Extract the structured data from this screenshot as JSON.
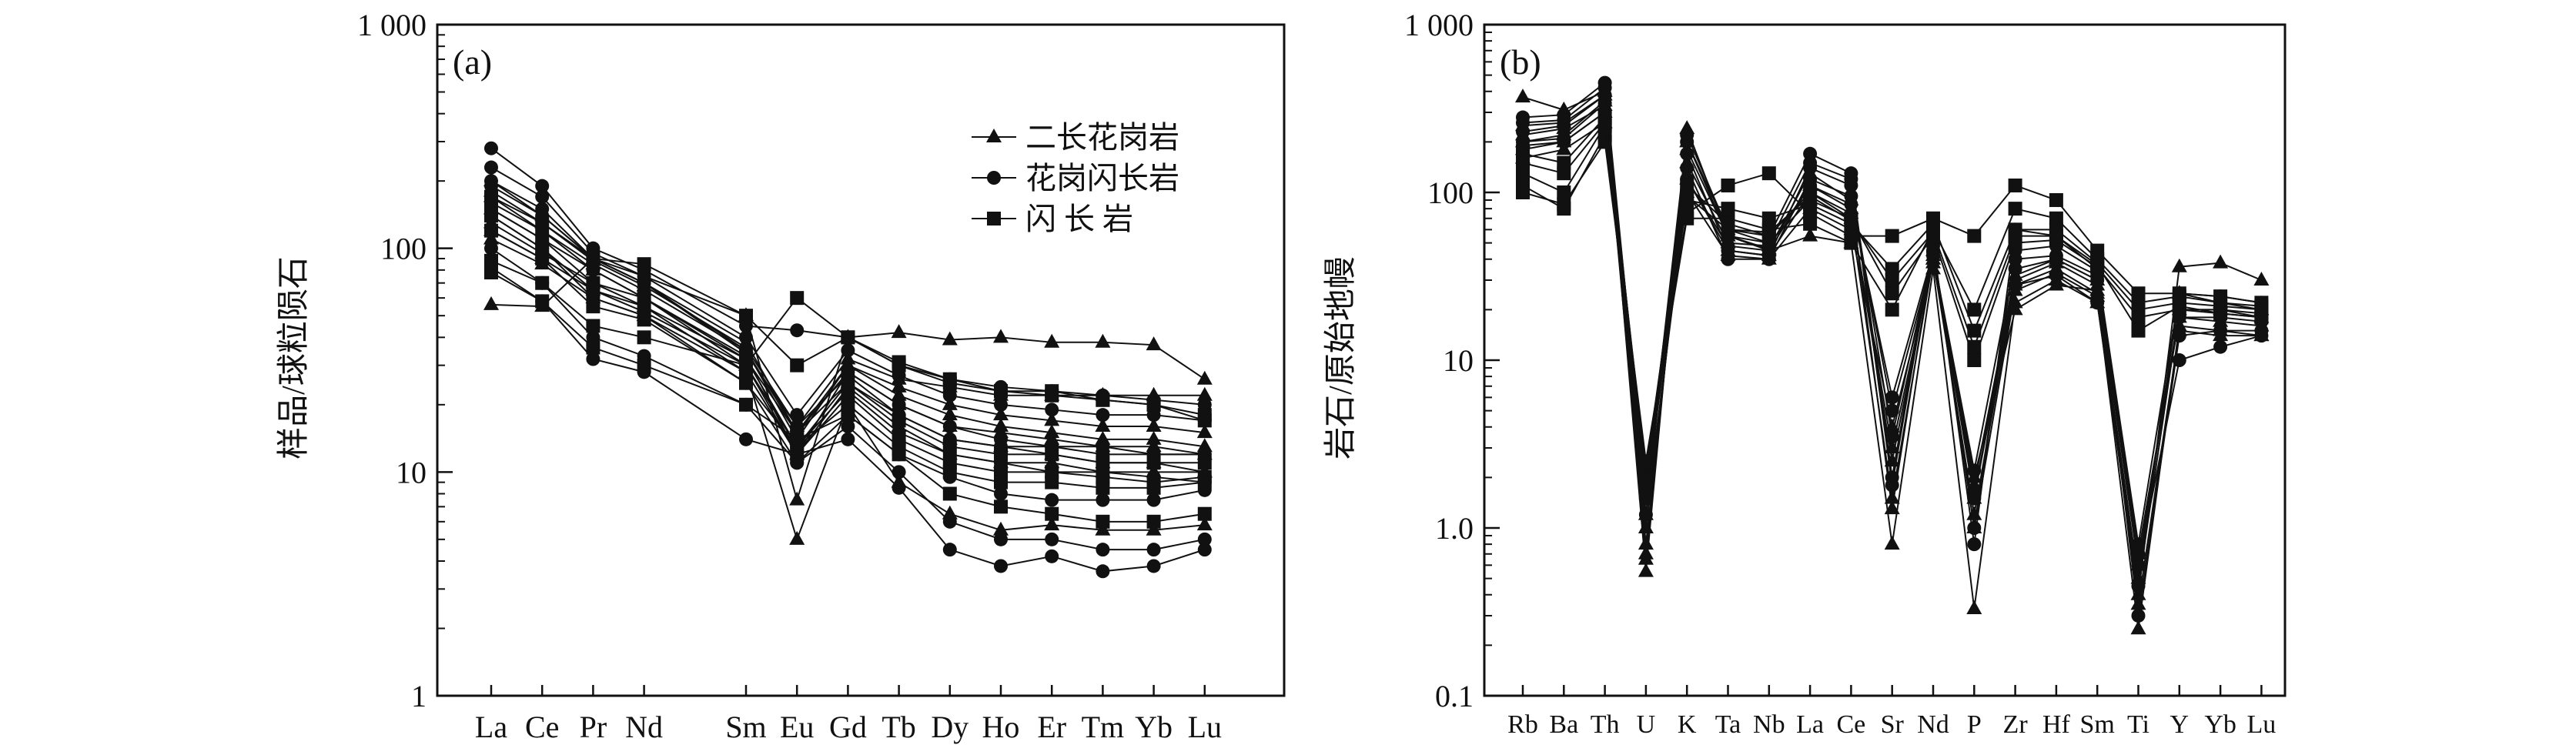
{
  "chart_data": [
    {
      "type": "line",
      "panel_label": "(a)",
      "ylabel": "样品/球粒陨石",
      "yscale": "log",
      "ylim": [
        1,
        1000
      ],
      "yticks": [
        {
          "value": 1,
          "label": "1"
        },
        {
          "value": 10,
          "label": "10"
        },
        {
          "value": 100,
          "label": "100"
        },
        {
          "value": 1000,
          "label": "1 000"
        }
      ],
      "categories": [
        "La",
        "Ce",
        "Pr",
        "Nd",
        "Sm",
        "Eu",
        "Gd",
        "Tb",
        "Dy",
        "Ho",
        "Er",
        "Tm",
        "Yb",
        "Lu"
      ],
      "category_positions": [
        0,
        1,
        2,
        3,
        5,
        6,
        7,
        8,
        9,
        10,
        11,
        12,
        13,
        14
      ],
      "legend": {
        "position": "top-right",
        "entries": [
          {
            "label": "二长花岗岩",
            "marker": "triangle"
          },
          {
            "label": "花岗闪长岩",
            "marker": "circle"
          },
          {
            "label": "闪 长 岩",
            "marker": "square"
          }
        ]
      },
      "series": [
        {
          "marker": "triangle",
          "values": [
            56,
            55,
            90,
            75,
            50,
            7.5,
            40,
            42,
            39,
            40,
            38,
            38,
            37,
            26
          ]
        },
        {
          "marker": "triangle",
          "values": [
            130,
            95,
            70,
            55,
            32,
            13,
            25,
            18,
            14,
            13,
            12,
            11,
            11,
            10
          ]
        },
        {
          "marker": "triangle",
          "values": [
            150,
            110,
            80,
            60,
            33,
            12,
            28,
            20,
            16,
            15,
            14,
            13,
            13,
            12
          ]
        },
        {
          "marker": "triangle",
          "values": [
            170,
            120,
            85,
            65,
            35,
            14,
            30,
            22,
            18,
            16,
            15,
            14,
            14,
            13
          ]
        },
        {
          "marker": "triangle",
          "values": [
            110,
            85,
            60,
            50,
            28,
            5,
            20,
            9,
            6.5,
            5.5,
            5.8,
            5.5,
            5.5,
            5.8
          ]
        },
        {
          "marker": "triangle",
          "values": [
            200,
            140,
            90,
            70,
            38,
            15,
            30,
            24,
            20,
            18,
            17,
            16,
            16,
            15
          ]
        },
        {
          "marker": "triangle",
          "values": [
            120,
            90,
            65,
            52,
            30,
            12,
            24,
            16,
            12,
            11,
            11,
            10,
            10,
            10
          ]
        },
        {
          "marker": "triangle",
          "values": [
            180,
            130,
            88,
            68,
            36,
            16,
            32,
            26,
            24,
            22,
            22,
            22,
            22,
            22
          ]
        },
        {
          "marker": "circle",
          "values": [
            280,
            190,
            100,
            80,
            45,
            43,
            40,
            30,
            26,
            24,
            23,
            22,
            21,
            20
          ]
        },
        {
          "marker": "circle",
          "values": [
            230,
            170,
            95,
            75,
            40,
            18,
            35,
            27,
            22,
            20,
            19,
            18,
            18,
            17
          ]
        },
        {
          "marker": "circle",
          "values": [
            82,
            58,
            32,
            28,
            14,
            12,
            14,
            8.5,
            4.5,
            3.8,
            4.2,
            3.6,
            3.8,
            4.5
          ]
        },
        {
          "marker": "circle",
          "values": [
            200,
            150,
            90,
            70,
            35,
            15,
            28,
            20,
            16,
            14,
            13,
            12,
            12,
            12
          ]
        },
        {
          "marker": "circle",
          "values": [
            100,
            70,
            40,
            33,
            20,
            11,
            16,
            10,
            6,
            5,
            5,
            4.5,
            4.5,
            5
          ]
        },
        {
          "marker": "circle",
          "values": [
            160,
            120,
            80,
            60,
            30,
            13,
            23,
            15,
            12,
            11,
            10,
            10,
            9.5,
            9
          ]
        },
        {
          "marker": "circle",
          "values": [
            140,
            100,
            60,
            50,
            25,
            11,
            18,
            12,
            9.5,
            8,
            7.5,
            7.5,
            7.5,
            8.3
          ]
        },
        {
          "marker": "circle",
          "values": [
            190,
            140,
            90,
            70,
            34,
            16,
            27,
            18,
            14,
            13,
            13,
            13,
            12,
            12
          ]
        },
        {
          "marker": "square",
          "values": [
            88,
            70,
            45,
            40,
            30,
            60,
            40,
            30,
            25,
            23,
            22,
            21,
            20,
            18
          ]
        },
        {
          "marker": "square",
          "values": [
            78,
            58,
            36,
            30,
            20,
            14,
            18,
            12,
            8,
            7,
            6.5,
            6,
            6,
            6.5
          ]
        },
        {
          "marker": "square",
          "values": [
            170,
            130,
            90,
            85,
            50,
            30,
            40,
            31,
            26,
            23,
            23,
            21,
            20,
            17
          ]
        },
        {
          "marker": "square",
          "values": [
            140,
            100,
            65,
            55,
            28,
            12,
            22,
            14,
            11,
            10,
            10,
            9.5,
            9,
            9.5
          ]
        },
        {
          "marker": "square",
          "values": [
            150,
            110,
            70,
            60,
            32,
            15,
            25,
            17,
            13,
            12,
            12,
            11,
            11,
            11
          ]
        },
        {
          "marker": "square",
          "values": [
            120,
            90,
            55,
            48,
            25,
            13,
            20,
            13,
            10,
            9,
            9,
            8.5,
            8.5,
            9
          ]
        }
      ]
    },
    {
      "type": "line",
      "panel_label": "(b)",
      "ylabel": "岩石/原始地幔",
      "yscale": "log",
      "ylim": [
        0.1,
        1000
      ],
      "yticks": [
        {
          "value": 0.1,
          "label": "0.1"
        },
        {
          "value": 1,
          "label": "1.0"
        },
        {
          "value": 10,
          "label": "10"
        },
        {
          "value": 100,
          "label": "100"
        },
        {
          "value": 1000,
          "label": "1 000"
        }
      ],
      "categories": [
        "Rb",
        "Ba",
        "Th",
        "U",
        "K",
        "Ta",
        "Nb",
        "La",
        "Ce",
        "Sr",
        "Nd",
        "P",
        "Zr",
        "Hf",
        "Sm",
        "Ti",
        "Y",
        "Yb",
        "Lu"
      ],
      "category_positions": [
        0,
        1,
        2,
        3,
        4,
        5,
        6,
        7,
        8,
        9,
        10,
        11,
        12,
        13,
        14,
        15,
        16,
        17,
        18
      ],
      "series": [
        {
          "marker": "triangle",
          "values": [
            370,
            310,
            400,
            0.55,
            240,
            55,
            45,
            55,
            50,
            0.8,
            35,
            0.33,
            22,
            30,
            22,
            0.4,
            36,
            38,
            30
          ]
        },
        {
          "marker": "triangle",
          "values": [
            250,
            260,
            380,
            0.65,
            200,
            60,
            50,
            90,
            70,
            1.5,
            40,
            1.2,
            28,
            35,
            25,
            0.5,
            25,
            22,
            20
          ]
        },
        {
          "marker": "triangle",
          "values": [
            200,
            220,
            350,
            0.8,
            150,
            50,
            48,
            110,
            80,
            2.5,
            42,
            1.5,
            30,
            38,
            28,
            0.6,
            20,
            20,
            18
          ]
        },
        {
          "marker": "triangle",
          "values": [
            180,
            200,
            300,
            1.0,
            120,
            45,
            42,
            100,
            75,
            3,
            40,
            1.8,
            32,
            40,
            30,
            0.7,
            18,
            17,
            16
          ]
        },
        {
          "marker": "triangle",
          "values": [
            220,
            240,
            330,
            0.7,
            180,
            55,
            46,
            130,
            90,
            1.3,
            45,
            1.0,
            26,
            33,
            24,
            0.25,
            16,
            15,
            14
          ]
        },
        {
          "marker": "triangle",
          "values": [
            160,
            180,
            260,
            1.2,
            100,
            42,
            40,
            80,
            60,
            4,
            38,
            2.0,
            20,
            28,
            26,
            0.35,
            15,
            14,
            14
          ]
        },
        {
          "marker": "circle",
          "values": [
            280,
            290,
            450,
            1.5,
            220,
            60,
            55,
            170,
            130,
            2.0,
            50,
            0.8,
            60,
            55,
            35,
            0.8,
            25,
            24,
            22
          ]
        },
        {
          "marker": "circle",
          "values": [
            230,
            250,
            380,
            1.8,
            170,
            45,
            42,
            140,
            110,
            3.5,
            45,
            1.5,
            35,
            40,
            30,
            0.6,
            10,
            12,
            14
          ]
        },
        {
          "marker": "circle",
          "values": [
            200,
            210,
            340,
            2.0,
            140,
            40,
            40,
            120,
            95,
            5,
            42,
            2.2,
            40,
            42,
            32,
            0.7,
            18,
            18,
            17
          ]
        },
        {
          "marker": "circle",
          "values": [
            260,
            270,
            420,
            1.2,
            200,
            55,
            50,
            150,
            120,
            1.8,
            48,
            1.0,
            45,
            48,
            34,
            0.3,
            14,
            15,
            15
          ]
        },
        {
          "marker": "circle",
          "values": [
            190,
            200,
            300,
            2.2,
            120,
            48,
            45,
            110,
            85,
            6,
            44,
            1.6,
            28,
            32,
            22,
            0.45,
            20,
            19,
            18
          ]
        },
        {
          "marker": "square",
          "values": [
            110,
            80,
            220,
            2.5,
            75,
            110,
            130,
            75,
            55,
            55,
            70,
            55,
            110,
            90,
            45,
            25,
            25,
            24,
            22
          ]
        },
        {
          "marker": "square",
          "values": [
            100,
            85,
            200,
            2.3,
            70,
            70,
            60,
            65,
            50,
            20,
            60,
            20,
            80,
            70,
            40,
            22,
            24,
            22,
            21
          ]
        },
        {
          "marker": "square",
          "values": [
            130,
            100,
            250,
            2.0,
            90,
            80,
            70,
            85,
            65,
            35,
            65,
            15,
            60,
            60,
            38,
            20,
            22,
            21,
            20
          ]
        },
        {
          "marker": "square",
          "values": [
            170,
            150,
            280,
            1.8,
            110,
            65,
            55,
            100,
            70,
            25,
            55,
            10,
            50,
            52,
            36,
            18,
            20,
            20,
            19
          ]
        },
        {
          "marker": "square",
          "values": [
            150,
            130,
            260,
            1.6,
            95,
            60,
            58,
            95,
            68,
            30,
            58,
            12,
            55,
            55,
            37,
            15,
            21,
            19,
            18
          ]
        }
      ]
    }
  ]
}
